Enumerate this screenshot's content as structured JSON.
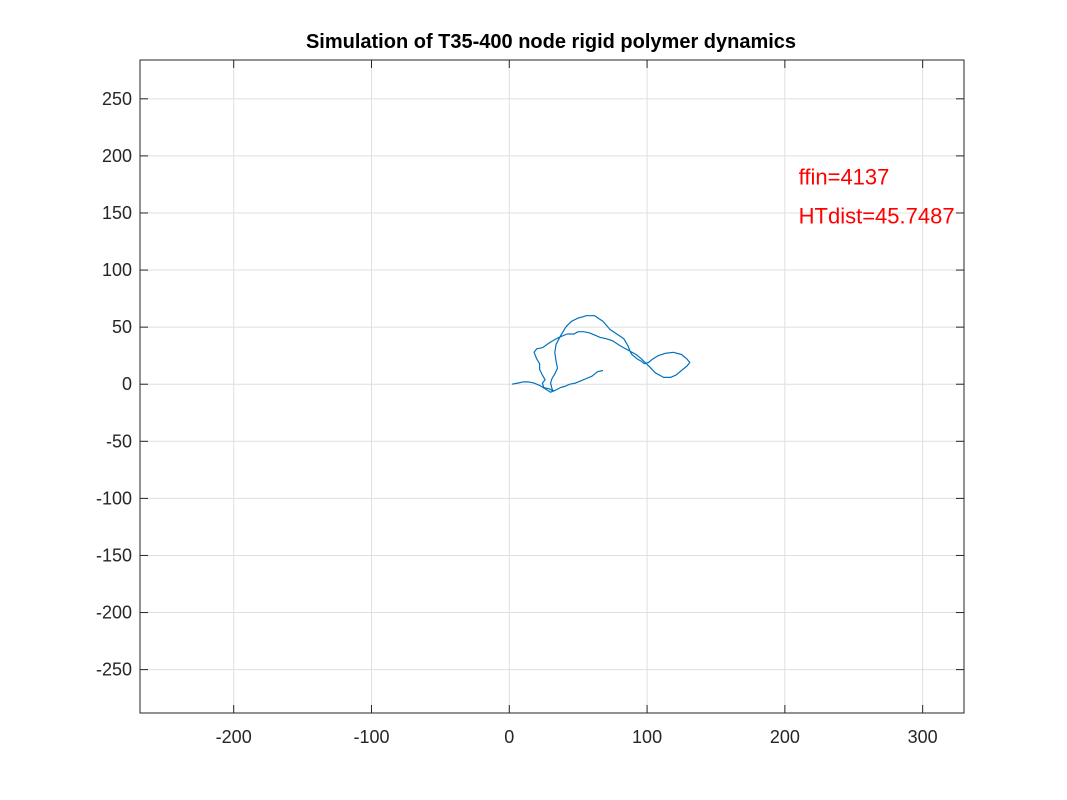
{
  "chart_data": {
    "type": "line",
    "title": "Simulation of T35-400 node rigid polymer dynamics",
    "xlabel": "",
    "ylabel": "",
    "xlim": [
      -268,
      330
    ],
    "ylim": [
      -288,
      284
    ],
    "xticks": [
      -200,
      -100,
      0,
      100,
      200,
      300
    ],
    "yticks": [
      250,
      200,
      150,
      100,
      50,
      0,
      -50,
      -100,
      -150,
      -200,
      -250
    ],
    "xtick_labels": [
      "-200",
      "-100",
      "0",
      "100",
      "200",
      "300"
    ],
    "ytick_labels": [
      "250",
      "200",
      "150",
      "100",
      "50",
      "0",
      "-50",
      "-100",
      "-150",
      "-200",
      "-250"
    ],
    "grid": true,
    "box": true,
    "series": [
      {
        "color": "#0072BD",
        "x": [
          2,
          6,
          10,
          14,
          18,
          22,
          26,
          30,
          32,
          29,
          25,
          24,
          26,
          24,
          22,
          22,
          20,
          18,
          20,
          24,
          30,
          36,
          42,
          47,
          50,
          54,
          58,
          62,
          66,
          70,
          75,
          80,
          86,
          92,
          96,
          102,
          106,
          112,
          117,
          121,
          125,
          129,
          131,
          129,
          125,
          119,
          113,
          108,
          104,
          101,
          98,
          96,
          93,
          91,
          90,
          89,
          88,
          86,
          83,
          78,
          73,
          68,
          62,
          56,
          53,
          50,
          45,
          41,
          37,
          34,
          33,
          34,
          35,
          33,
          31,
          30,
          31,
          32,
          34,
          37,
          40,
          44,
          48,
          52,
          56,
          60,
          64,
          68
        ],
        "y": [
          0,
          1,
          2,
          2,
          1,
          -1,
          -4,
          -7,
          -6,
          -4,
          -3,
          1,
          4,
          8,
          13,
          18,
          22,
          28,
          31,
          32,
          37,
          41,
          44,
          44,
          46,
          46,
          45,
          43,
          41,
          40,
          38,
          34,
          30,
          26,
          22,
          15,
          10,
          6,
          6,
          8,
          12,
          16,
          19,
          22,
          26,
          28,
          27,
          25,
          22,
          19,
          18,
          20,
          22,
          24,
          25,
          26,
          28,
          34,
          40,
          44,
          48,
          55,
          60,
          60,
          59,
          58,
          55,
          50,
          42,
          35,
          28,
          20,
          14,
          9,
          5,
          1,
          -4,
          -6,
          -5,
          -3,
          -2,
          0,
          1,
          3,
          5,
          7,
          11,
          12
        ]
      }
    ],
    "annotations": [
      {
        "text": "ffin=4137",
        "x": 210,
        "y": 175,
        "color": "#ff0000"
      },
      {
        "text": "HTdist=45.7487",
        "x": 210,
        "y": 141,
        "color": "#ff0000"
      }
    ]
  }
}
